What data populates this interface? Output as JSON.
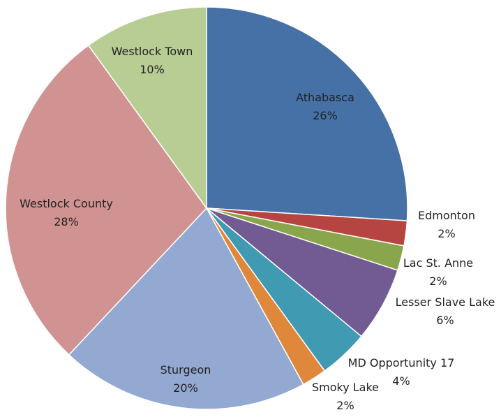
{
  "chart_data": {
    "type": "pie",
    "categories": [
      "Athabasca",
      "Edmonton",
      "Lac St. Anne",
      "Lesser Slave Lake",
      "MD Opportunity 17",
      "Smoky Lake",
      "Sturgeon",
      "Westlock County",
      "Westlock Town"
    ],
    "values": [
      26,
      2,
      2,
      6,
      4,
      2,
      20,
      28,
      10
    ],
    "value_labels": [
      "26%",
      "2%",
      "2%",
      "6%",
      "4%",
      "2%",
      "20%",
      "28%",
      "10%"
    ],
    "colors": [
      "#4671a7",
      "#b64441",
      "#8aa64c",
      "#725a92",
      "#3f9ab2",
      "#df873b",
      "#93a9d1",
      "#d09391",
      "#b8cd94"
    ]
  }
}
